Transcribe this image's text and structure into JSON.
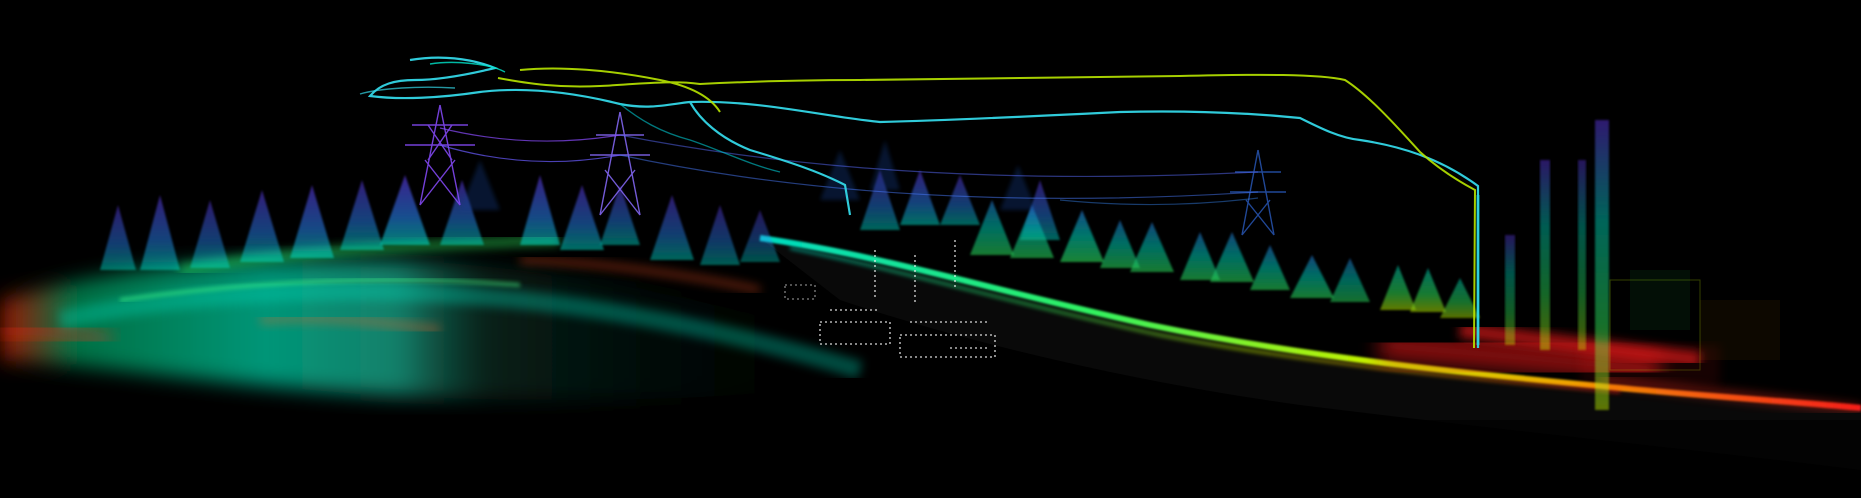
{
  "scene": {
    "type": "lidar-point-cloud",
    "background": "#000000",
    "colormap": [
      "#ff1a1a",
      "#ffaa00",
      "#ccff00",
      "#33ff66",
      "#00e6cc",
      "#2a8cff",
      "#6a3cff",
      "#b03cff"
    ],
    "flight_path_colors": [
      "#33d6e6",
      "#b8e600"
    ],
    "highlight_color": "#ffffff",
    "objects": [
      "flight-trajectory",
      "ground-terrain",
      "conifer-forest",
      "transmission-towers",
      "power-lines",
      "vertical-poles",
      "vehicles"
    ]
  }
}
